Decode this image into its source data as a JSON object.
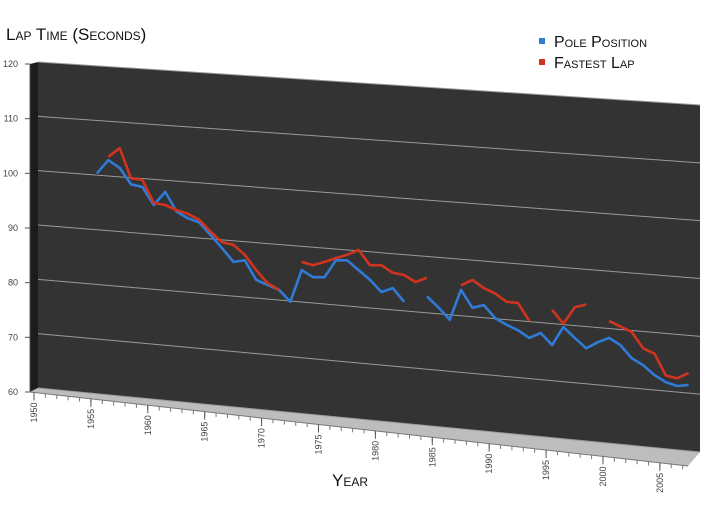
{
  "chart_data": {
    "type": "line",
    "y_axis_label": "Lap Time (Seconds)",
    "x_axis_label": "Year",
    "x": [
      1950,
      1951,
      1952,
      1953,
      1954,
      1955,
      1956,
      1957,
      1958,
      1959,
      1960,
      1961,
      1962,
      1963,
      1964,
      1965,
      1966,
      1967,
      1968,
      1969,
      1970,
      1971,
      1972,
      1973,
      1974,
      1975,
      1976,
      1977,
      1978,
      1979,
      1980,
      1981,
      1982,
      1983,
      1984,
      1985,
      1986,
      1987,
      1988,
      1989,
      1990,
      1991,
      1992,
      1993,
      1994,
      1995,
      1996,
      1997,
      1998,
      1999,
      2000,
      2001,
      2002,
      2003,
      2004,
      2005,
      2006,
      2007
    ],
    "series": [
      {
        "name": "Pole Position",
        "color": "#2f7bd6",
        "values": [
          null,
          null,
          null,
          null,
          null,
          100,
          102.4,
          101,
          98,
          97.5,
          94.2,
          96.6,
          93,
          91.8,
          91,
          88.7,
          86.3,
          83.8,
          84.1,
          80.5,
          79.6,
          78.7,
          76.5,
          82.3,
          81,
          81,
          84.1,
          84.1,
          82.3,
          80.5,
          78.3,
          79,
          76.5,
          null,
          77.5,
          75.5,
          73.2,
          78.7,
          75.4,
          75.9,
          73.5,
          72.3,
          71.3,
          69.9,
          70.8,
          68.6,
          71.9,
          69.9,
          68,
          69.1,
          69.9,
          68.6,
          66.2,
          64.9,
          63.1,
          61.8,
          61.1,
          61.3
        ]
      },
      {
        "name": "Fastest Lap",
        "color": "#d0341f",
        "values": [
          null,
          null,
          null,
          null,
          null,
          null,
          103,
          104.6,
          99.1,
          98.8,
          94.6,
          94.2,
          93.3,
          92.6,
          91.5,
          89.3,
          87.4,
          86.9,
          85.1,
          82.3,
          79.9,
          78.7,
          null,
          83.8,
          83.2,
          83.8,
          84.5,
          85.1,
          86,
          83.2,
          83.2,
          81.8,
          81.4,
          80.1,
          80.9,
          null,
          null,
          79.5,
          80.5,
          79,
          78,
          76.5,
          76.3,
          73,
          null,
          75,
          72.5,
          75.5,
          76,
          null,
          73,
          72,
          71,
          68,
          67,
          63,
          62.5,
          63.5
        ]
      }
    ],
    "xlim": [
      1950,
      2008
    ],
    "xticks": [
      1950,
      1955,
      1960,
      1965,
      1970,
      1975,
      1980,
      1985,
      1990,
      1995,
      2000,
      2005
    ],
    "ylim": [
      60,
      120
    ],
    "yticks": [
      60,
      70,
      80,
      90,
      100,
      110,
      120
    ],
    "grid": true,
    "legend": "top-right"
  }
}
